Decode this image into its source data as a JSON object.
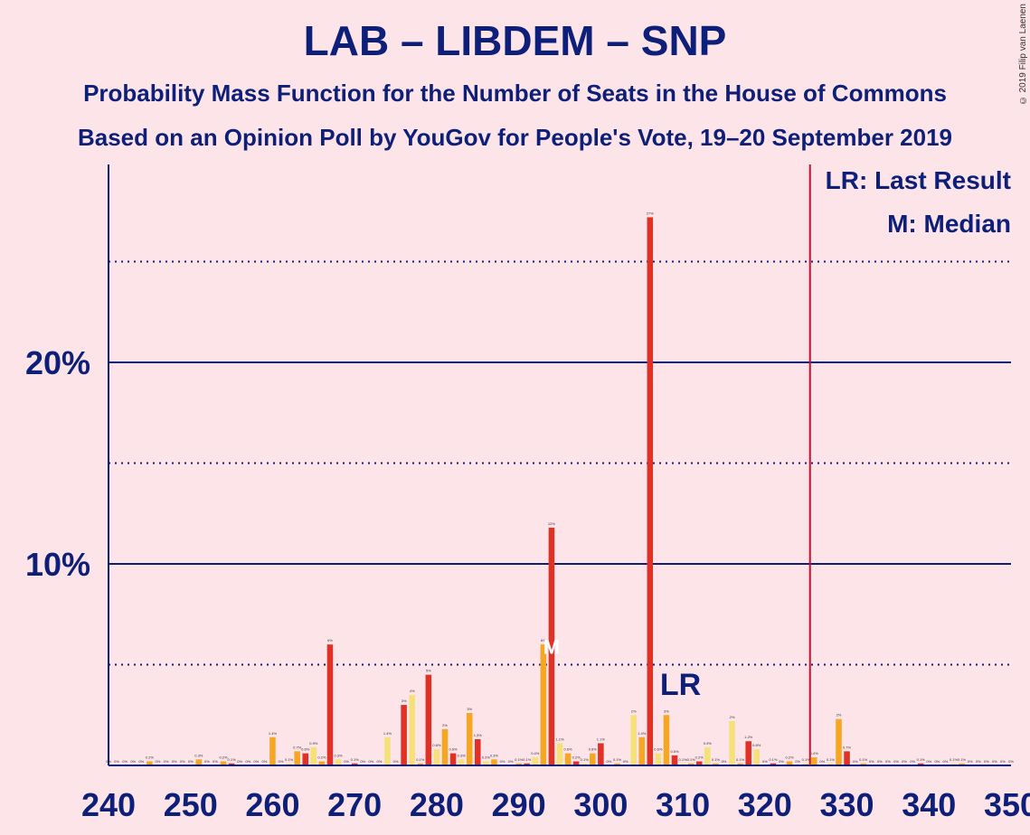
{
  "header": {
    "title": "LAB – LIBDEM – SNP",
    "subtitle1": "Probability Mass Function for the Number of Seats in the House of Commons",
    "subtitle2": "Based on an Opinion Poll by YouGov for People's Vote, 19–20 September 2019",
    "copyright": "© 2019 Filip van Laenen"
  },
  "legend": {
    "lr": "LR: Last Result",
    "m": "M: Median"
  },
  "markers": {
    "lr_label": "LR",
    "median_label": "M"
  },
  "colors": {
    "background": "#fde4e8",
    "axis": "#0d1f78",
    "red": "#e03127",
    "orange": "#f5a623",
    "yellow": "#f5e07a",
    "majority_line": "#c8102e"
  },
  "chart_data": {
    "type": "bar",
    "title": "LAB – LIBDEM – SNP",
    "xlim": [
      240,
      350
    ],
    "ylim": [
      0,
      29
    ],
    "x_ticks": [
      240,
      250,
      260,
      270,
      280,
      290,
      300,
      310,
      320,
      330,
      340,
      350
    ],
    "y_ticks": [
      {
        "value": 10,
        "label": "10%"
      },
      {
        "value": 20,
        "label": "20%"
      }
    ],
    "dotted_gridlines": [
      5,
      15,
      25
    ],
    "majority_line": 326,
    "last_result": 307,
    "median": 294,
    "values": [
      {
        "x": 240,
        "y": 0,
        "label": "0%"
      },
      {
        "x": 241,
        "y": 0,
        "label": "0%"
      },
      {
        "x": 242,
        "y": 0,
        "label": "0%"
      },
      {
        "x": 243,
        "y": 0,
        "label": "0%"
      },
      {
        "x": 244,
        "y": 0,
        "label": "0%"
      },
      {
        "x": 245,
        "y": 0.2,
        "label": "0.2%"
      },
      {
        "x": 246,
        "y": 0,
        "label": "0%"
      },
      {
        "x": 247,
        "y": 0,
        "label": "0%"
      },
      {
        "x": 248,
        "y": 0,
        "label": "0%"
      },
      {
        "x": 249,
        "y": 0,
        "label": "0%"
      },
      {
        "x": 250,
        "y": 0,
        "label": "0%"
      },
      {
        "x": 251,
        "y": 0.3,
        "label": "0.3%"
      },
      {
        "x": 252,
        "y": 0,
        "label": "0%"
      },
      {
        "x": 253,
        "y": 0,
        "label": "0%"
      },
      {
        "x": 254,
        "y": 0.2,
        "label": "0.2%"
      },
      {
        "x": 255,
        "y": 0.1,
        "label": "0.1%"
      },
      {
        "x": 256,
        "y": 0,
        "label": "0%"
      },
      {
        "x": 257,
        "y": 0,
        "label": "0%"
      },
      {
        "x": 258,
        "y": 0,
        "label": "0%"
      },
      {
        "x": 259,
        "y": 0,
        "label": "0%"
      },
      {
        "x": 260,
        "y": 1.4,
        "label": "1.4%"
      },
      {
        "x": 261,
        "y": 0,
        "label": "0%"
      },
      {
        "x": 262,
        "y": 0.1,
        "label": "0.1%"
      },
      {
        "x": 263,
        "y": 0.7,
        "label": "0.7%"
      },
      {
        "x": 264,
        "y": 0.6,
        "label": "0.6%"
      },
      {
        "x": 265,
        "y": 0.9,
        "label": "0.9%"
      },
      {
        "x": 266,
        "y": 0.2,
        "label": "0.2%"
      },
      {
        "x": 267,
        "y": 6,
        "label": "6%"
      },
      {
        "x": 268,
        "y": 0.3,
        "label": "0.3%"
      },
      {
        "x": 269,
        "y": 0,
        "label": "0%"
      },
      {
        "x": 270,
        "y": 0.1,
        "label": "0.1%"
      },
      {
        "x": 271,
        "y": 0,
        "label": "0%"
      },
      {
        "x": 272,
        "y": 0,
        "label": "0%"
      },
      {
        "x": 273,
        "y": 0,
        "label": "0%"
      },
      {
        "x": 274,
        "y": 1.4,
        "label": "1.4%"
      },
      {
        "x": 275,
        "y": 0,
        "label": "0%"
      },
      {
        "x": 276,
        "y": 3,
        "label": "3%"
      },
      {
        "x": 277,
        "y": 3.5,
        "label": "4%"
      },
      {
        "x": 278,
        "y": 0.1,
        "label": "0.1%"
      },
      {
        "x": 279,
        "y": 4.5,
        "label": "5%"
      },
      {
        "x": 280,
        "y": 0.8,
        "label": "0.8%"
      },
      {
        "x": 281,
        "y": 1.8,
        "label": "2%"
      },
      {
        "x": 282,
        "y": 0.6,
        "label": "0.6%"
      },
      {
        "x": 283,
        "y": 0.3,
        "label": "0.3%"
      },
      {
        "x": 284,
        "y": 2.6,
        "label": "3%"
      },
      {
        "x": 285,
        "y": 1.3,
        "label": "1.3%"
      },
      {
        "x": 286,
        "y": 0.2,
        "label": "0.2%"
      },
      {
        "x": 287,
        "y": 0.3,
        "label": "0.3%"
      },
      {
        "x": 288,
        "y": 0,
        "label": "0%"
      },
      {
        "x": 289,
        "y": 0,
        "label": "0%"
      },
      {
        "x": 290,
        "y": 0.1,
        "label": "0.1%"
      },
      {
        "x": 291,
        "y": 0.1,
        "label": "0.1%"
      },
      {
        "x": 292,
        "y": 0.4,
        "label": "0.4%"
      },
      {
        "x": 293,
        "y": 6,
        "label": "6%"
      },
      {
        "x": 294,
        "y": 11.8,
        "label": "12%"
      },
      {
        "x": 295,
        "y": 1.1,
        "label": "1.1%"
      },
      {
        "x": 296,
        "y": 0.6,
        "label": "0.6%"
      },
      {
        "x": 297,
        "y": 0.2,
        "label": "0.2%"
      },
      {
        "x": 298,
        "y": 0.1,
        "label": "0.1%"
      },
      {
        "x": 299,
        "y": 0.6,
        "label": "0.6%"
      },
      {
        "x": 300,
        "y": 1.1,
        "label": "1.1%"
      },
      {
        "x": 301,
        "y": 0,
        "label": "0%"
      },
      {
        "x": 302,
        "y": 0.1,
        "label": "0.1%"
      },
      {
        "x": 303,
        "y": 0,
        "label": "0%"
      },
      {
        "x": 304,
        "y": 2.5,
        "label": "2%"
      },
      {
        "x": 305,
        "y": 1.4,
        "label": "1.4%"
      },
      {
        "x": 306,
        "y": 27.2,
        "label": "27%"
      },
      {
        "x": 307,
        "y": 0.6,
        "label": "0.6%"
      },
      {
        "x": 308,
        "y": 2.5,
        "label": "3%"
      },
      {
        "x": 309,
        "y": 0.5,
        "label": "0.5%"
      },
      {
        "x": 310,
        "y": 0.1,
        "label": "0.1%"
      },
      {
        "x": 311,
        "y": 0.1,
        "label": "0.1%"
      },
      {
        "x": 312,
        "y": 0.2,
        "label": "0.2%"
      },
      {
        "x": 313,
        "y": 0.9,
        "label": "0.9%"
      },
      {
        "x": 314,
        "y": 0.1,
        "label": "0.1%"
      },
      {
        "x": 315,
        "y": 0,
        "label": "0%"
      },
      {
        "x": 316,
        "y": 2.2,
        "label": "2%"
      },
      {
        "x": 317,
        "y": 0.1,
        "label": "0.1%"
      },
      {
        "x": 318,
        "y": 1.2,
        "label": "1.2%"
      },
      {
        "x": 319,
        "y": 0.8,
        "label": "0.8%"
      },
      {
        "x": 320,
        "y": 0,
        "label": "0%"
      },
      {
        "x": 321,
        "y": 0.1,
        "label": "0.1%"
      },
      {
        "x": 322,
        "y": 0,
        "label": "0%"
      },
      {
        "x": 323,
        "y": 0.2,
        "label": "0.2%"
      },
      {
        "x": 324,
        "y": 0,
        "label": "0%"
      },
      {
        "x": 325,
        "y": 0.1,
        "label": "0.1%"
      },
      {
        "x": 326,
        "y": 0.4,
        "label": "0.4%"
      },
      {
        "x": 327,
        "y": 0,
        "label": "0%"
      },
      {
        "x": 328,
        "y": 0.1,
        "label": "0.1%"
      },
      {
        "x": 329,
        "y": 2.3,
        "label": "2%"
      },
      {
        "x": 330,
        "y": 0.7,
        "label": "0.7%"
      },
      {
        "x": 331,
        "y": 0,
        "label": "0%"
      },
      {
        "x": 332,
        "y": 0.1,
        "label": "0.1%"
      },
      {
        "x": 333,
        "y": 0,
        "label": "0%"
      },
      {
        "x": 334,
        "y": 0,
        "label": "0%"
      },
      {
        "x": 335,
        "y": 0,
        "label": "0%"
      },
      {
        "x": 336,
        "y": 0,
        "label": "0%"
      },
      {
        "x": 337,
        "y": 0,
        "label": "0%"
      },
      {
        "x": 338,
        "y": 0,
        "label": "0%"
      },
      {
        "x": 339,
        "y": 0.1,
        "label": "0.1%"
      },
      {
        "x": 340,
        "y": 0,
        "label": "0%"
      },
      {
        "x": 341,
        "y": 0,
        "label": "0%"
      },
      {
        "x": 342,
        "y": 0,
        "label": "0%"
      },
      {
        "x": 343,
        "y": 0.1,
        "label": "0.1%"
      },
      {
        "x": 344,
        "y": 0.1,
        "label": "0.1%"
      },
      {
        "x": 345,
        "y": 0,
        "label": "0%"
      },
      {
        "x": 346,
        "y": 0,
        "label": "0%"
      },
      {
        "x": 347,
        "y": 0,
        "label": "0%"
      },
      {
        "x": 348,
        "y": 0,
        "label": "0%"
      },
      {
        "x": 349,
        "y": 0,
        "label": "0%"
      },
      {
        "x": 350,
        "y": 0,
        "label": "0%"
      }
    ]
  }
}
